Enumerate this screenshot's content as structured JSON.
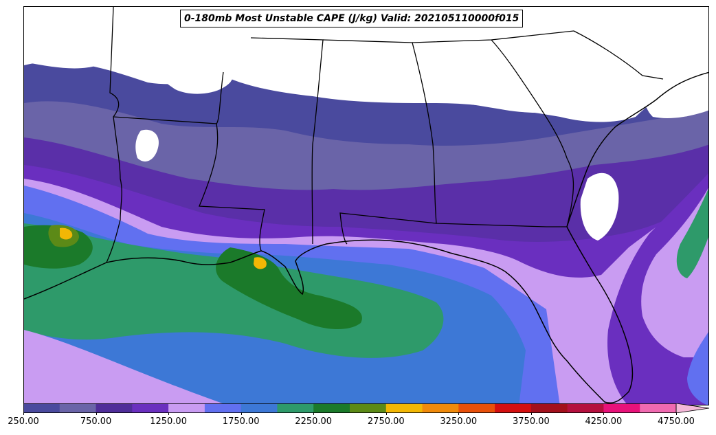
{
  "title": "0-180mb Most Unstable CAPE (J/kg) Valid: 202105110000f015",
  "colorbar": {
    "levels": [
      250,
      500,
      750,
      1000,
      1250,
      1500,
      1750,
      2000,
      2250,
      2500,
      2750,
      3000,
      3250,
      3500,
      3750,
      4000,
      4250,
      4500,
      4750
    ],
    "colors": [
      "#4a4a9e",
      "#6a64a8",
      "#4f2d99",
      "#6a2fbf",
      "#c99cf2",
      "#6170f0",
      "#3d78d6",
      "#2e9a6a",
      "#1b7a2a",
      "#5c8a17",
      "#f2b705",
      "#f08a0b",
      "#e8500a",
      "#d40f0f",
      "#a3101c",
      "#b5103e",
      "#e8127a",
      "#f06ab0",
      "#f4b8d8"
    ],
    "tick_labels": [
      "250.00",
      "750.00",
      "1250.00",
      "1750.00",
      "2250.00",
      "2750.00",
      "3250.00",
      "3750.00",
      "4250.00",
      "4750.00"
    ],
    "extend": "max"
  }
}
